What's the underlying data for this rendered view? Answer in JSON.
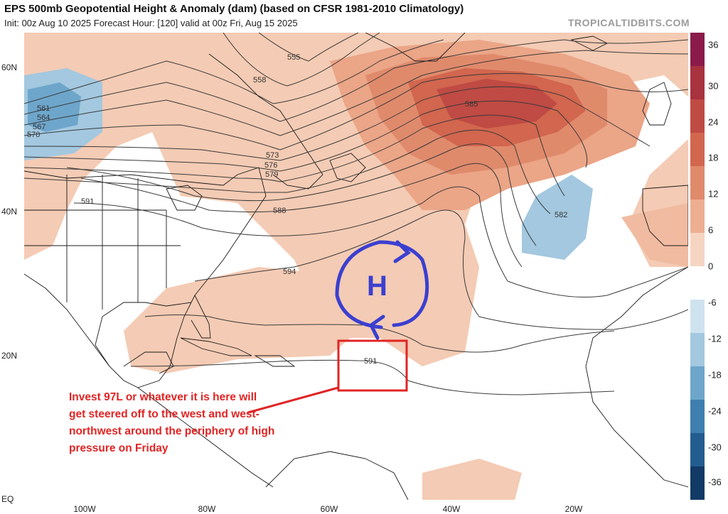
{
  "header": {
    "title": "EPS 500mb Geopotential Height & Anomaly (dam) (based on CFSR 1981-2010 Climatology)",
    "subtitle": "Init: 00z Aug 10 2025   Forecast Hour: [120]   valid at 00z Fri, Aug 15 2025",
    "watermark": "TROPICALTIDBITS.COM"
  },
  "axes": {
    "lat_labels": [
      "60N",
      "40N",
      "20N",
      "EQ"
    ],
    "lon_labels": [
      "100W",
      "80W",
      "60W",
      "40W",
      "20W"
    ]
  },
  "colorbar": {
    "labels": [
      "36",
      "30",
      "24",
      "18",
      "12",
      "6",
      "0",
      "-6",
      "-12",
      "-18",
      "-24",
      "-30",
      "-36"
    ],
    "colors": [
      "#8a1a4a",
      "#a8323e",
      "#c04a44",
      "#d2664e",
      "#e08a6c",
      "#eeae92",
      "#f6d4c2",
      "#ffffff",
      "#cfe3ef",
      "#a3c8df",
      "#6ea6cb",
      "#3e7fb0",
      "#235c8f",
      "#123a66"
    ]
  },
  "contour_labels": [
    "555",
    "558",
    "561",
    "564",
    "567",
    "570",
    "573",
    "576",
    "579",
    "582",
    "585",
    "588",
    "591",
    "594"
  ],
  "annotation": {
    "text": "Invest 97L or whatever it is here will get steered off to the west and west-northwest around the periphery of high pressure on Friday",
    "high_label": "H",
    "box_label": "591"
  }
}
